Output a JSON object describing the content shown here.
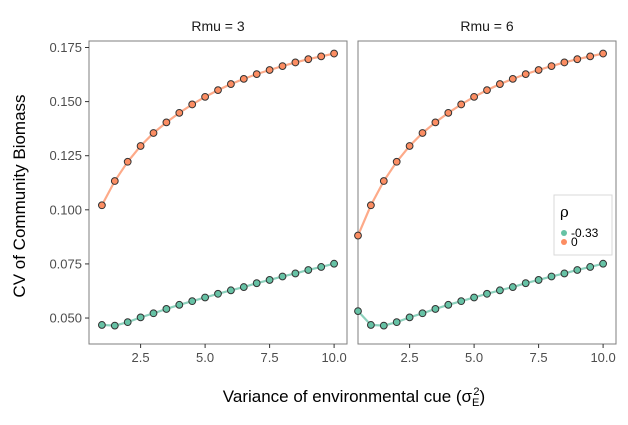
{
  "chart_data": {
    "type": "scatter",
    "ylabel": "CV of Community Biomass",
    "xlabel": "Variance of environmental cue (σ",
    "xlabel_sup": "2",
    "xlabel_sub": "E",
    "xlabel_end": ")",
    "xlim": [
      0.5,
      10.5
    ],
    "ylim": [
      0.038,
      0.178
    ],
    "x_ticks": [
      2.5,
      5.0,
      7.5,
      10.0
    ],
    "x_tick_labels": [
      "2.5",
      "5.0",
      "7.5",
      "10.0"
    ],
    "y_ticks": [
      0.05,
      0.075,
      0.1,
      0.125,
      0.15,
      0.175
    ],
    "y_tick_labels": [
      "0.050",
      "0.075",
      "0.100",
      "0.125",
      "0.150",
      "0.175"
    ],
    "grid": false,
    "legend": {
      "title": "ρ",
      "placement": "right",
      "entries": [
        {
          "label": "-0.33",
          "color": "#66c2a5"
        },
        {
          "label": "0",
          "color": "#fc8d62"
        }
      ]
    },
    "panels": [
      {
        "strip": "Rmu = 3",
        "series": [
          {
            "name": "-0.33",
            "color": "#66c2a5",
            "x": [
              1.0,
              1.5,
              2.0,
              2.5,
              3.0,
              3.5,
              4.0,
              4.5,
              5.0,
              5.5,
              6.0,
              6.5,
              7.0,
              7.5,
              8.0,
              8.5,
              9.0,
              9.5,
              10.0
            ],
            "y": [
              0.0468,
              0.0465,
              0.0481,
              0.0503,
              0.0522,
              0.0542,
              0.0561,
              0.0578,
              0.0595,
              0.0612,
              0.0628,
              0.0643,
              0.0661,
              0.0676,
              0.0692,
              0.0706,
              0.0722,
              0.0736,
              0.0751
            ]
          },
          {
            "name": "0",
            "color": "#fc8d62",
            "x": [
              1.0,
              1.5,
              2.0,
              2.5,
              3.0,
              3.5,
              4.0,
              4.5,
              5.0,
              5.5,
              6.0,
              6.5,
              7.0,
              7.5,
              8.0,
              8.5,
              9.0,
              9.5,
              10.0
            ],
            "y": [
              0.1021,
              0.1133,
              0.1222,
              0.1295,
              0.1355,
              0.1404,
              0.1448,
              0.1487,
              0.1522,
              0.1553,
              0.1581,
              0.1605,
              0.1627,
              0.1646,
              0.1664,
              0.1681,
              0.1696,
              0.1709,
              0.1722
            ]
          }
        ]
      },
      {
        "strip": "Rmu = 6",
        "series": [
          {
            "name": "-0.33",
            "color": "#66c2a5",
            "x": [
              0.5,
              1.0,
              1.5,
              2.0,
              2.5,
              3.0,
              3.5,
              4.0,
              4.5,
              5.0,
              5.5,
              6.0,
              6.5,
              7.0,
              7.5,
              8.0,
              8.5,
              9.0,
              9.5,
              10.0
            ],
            "y": [
              0.0532,
              0.0468,
              0.0465,
              0.0481,
              0.0503,
              0.0522,
              0.0542,
              0.0561,
              0.0578,
              0.0595,
              0.0612,
              0.0628,
              0.0643,
              0.0661,
              0.0676,
              0.0692,
              0.0706,
              0.0722,
              0.0736,
              0.0751
            ]
          },
          {
            "name": "0",
            "color": "#fc8d62",
            "x": [
              0.5,
              1.0,
              1.5,
              2.0,
              2.5,
              3.0,
              3.5,
              4.0,
              4.5,
              5.0,
              5.5,
              6.0,
              6.5,
              7.0,
              7.5,
              8.0,
              8.5,
              9.0,
              9.5,
              10.0
            ],
            "y": [
              0.0881,
              0.1021,
              0.1133,
              0.1222,
              0.1295,
              0.1355,
              0.1404,
              0.1448,
              0.1487,
              0.1522,
              0.1553,
              0.1581,
              0.1605,
              0.1627,
              0.1646,
              0.1664,
              0.1681,
              0.1696,
              0.1709,
              0.1722
            ]
          }
        ]
      }
    ]
  }
}
